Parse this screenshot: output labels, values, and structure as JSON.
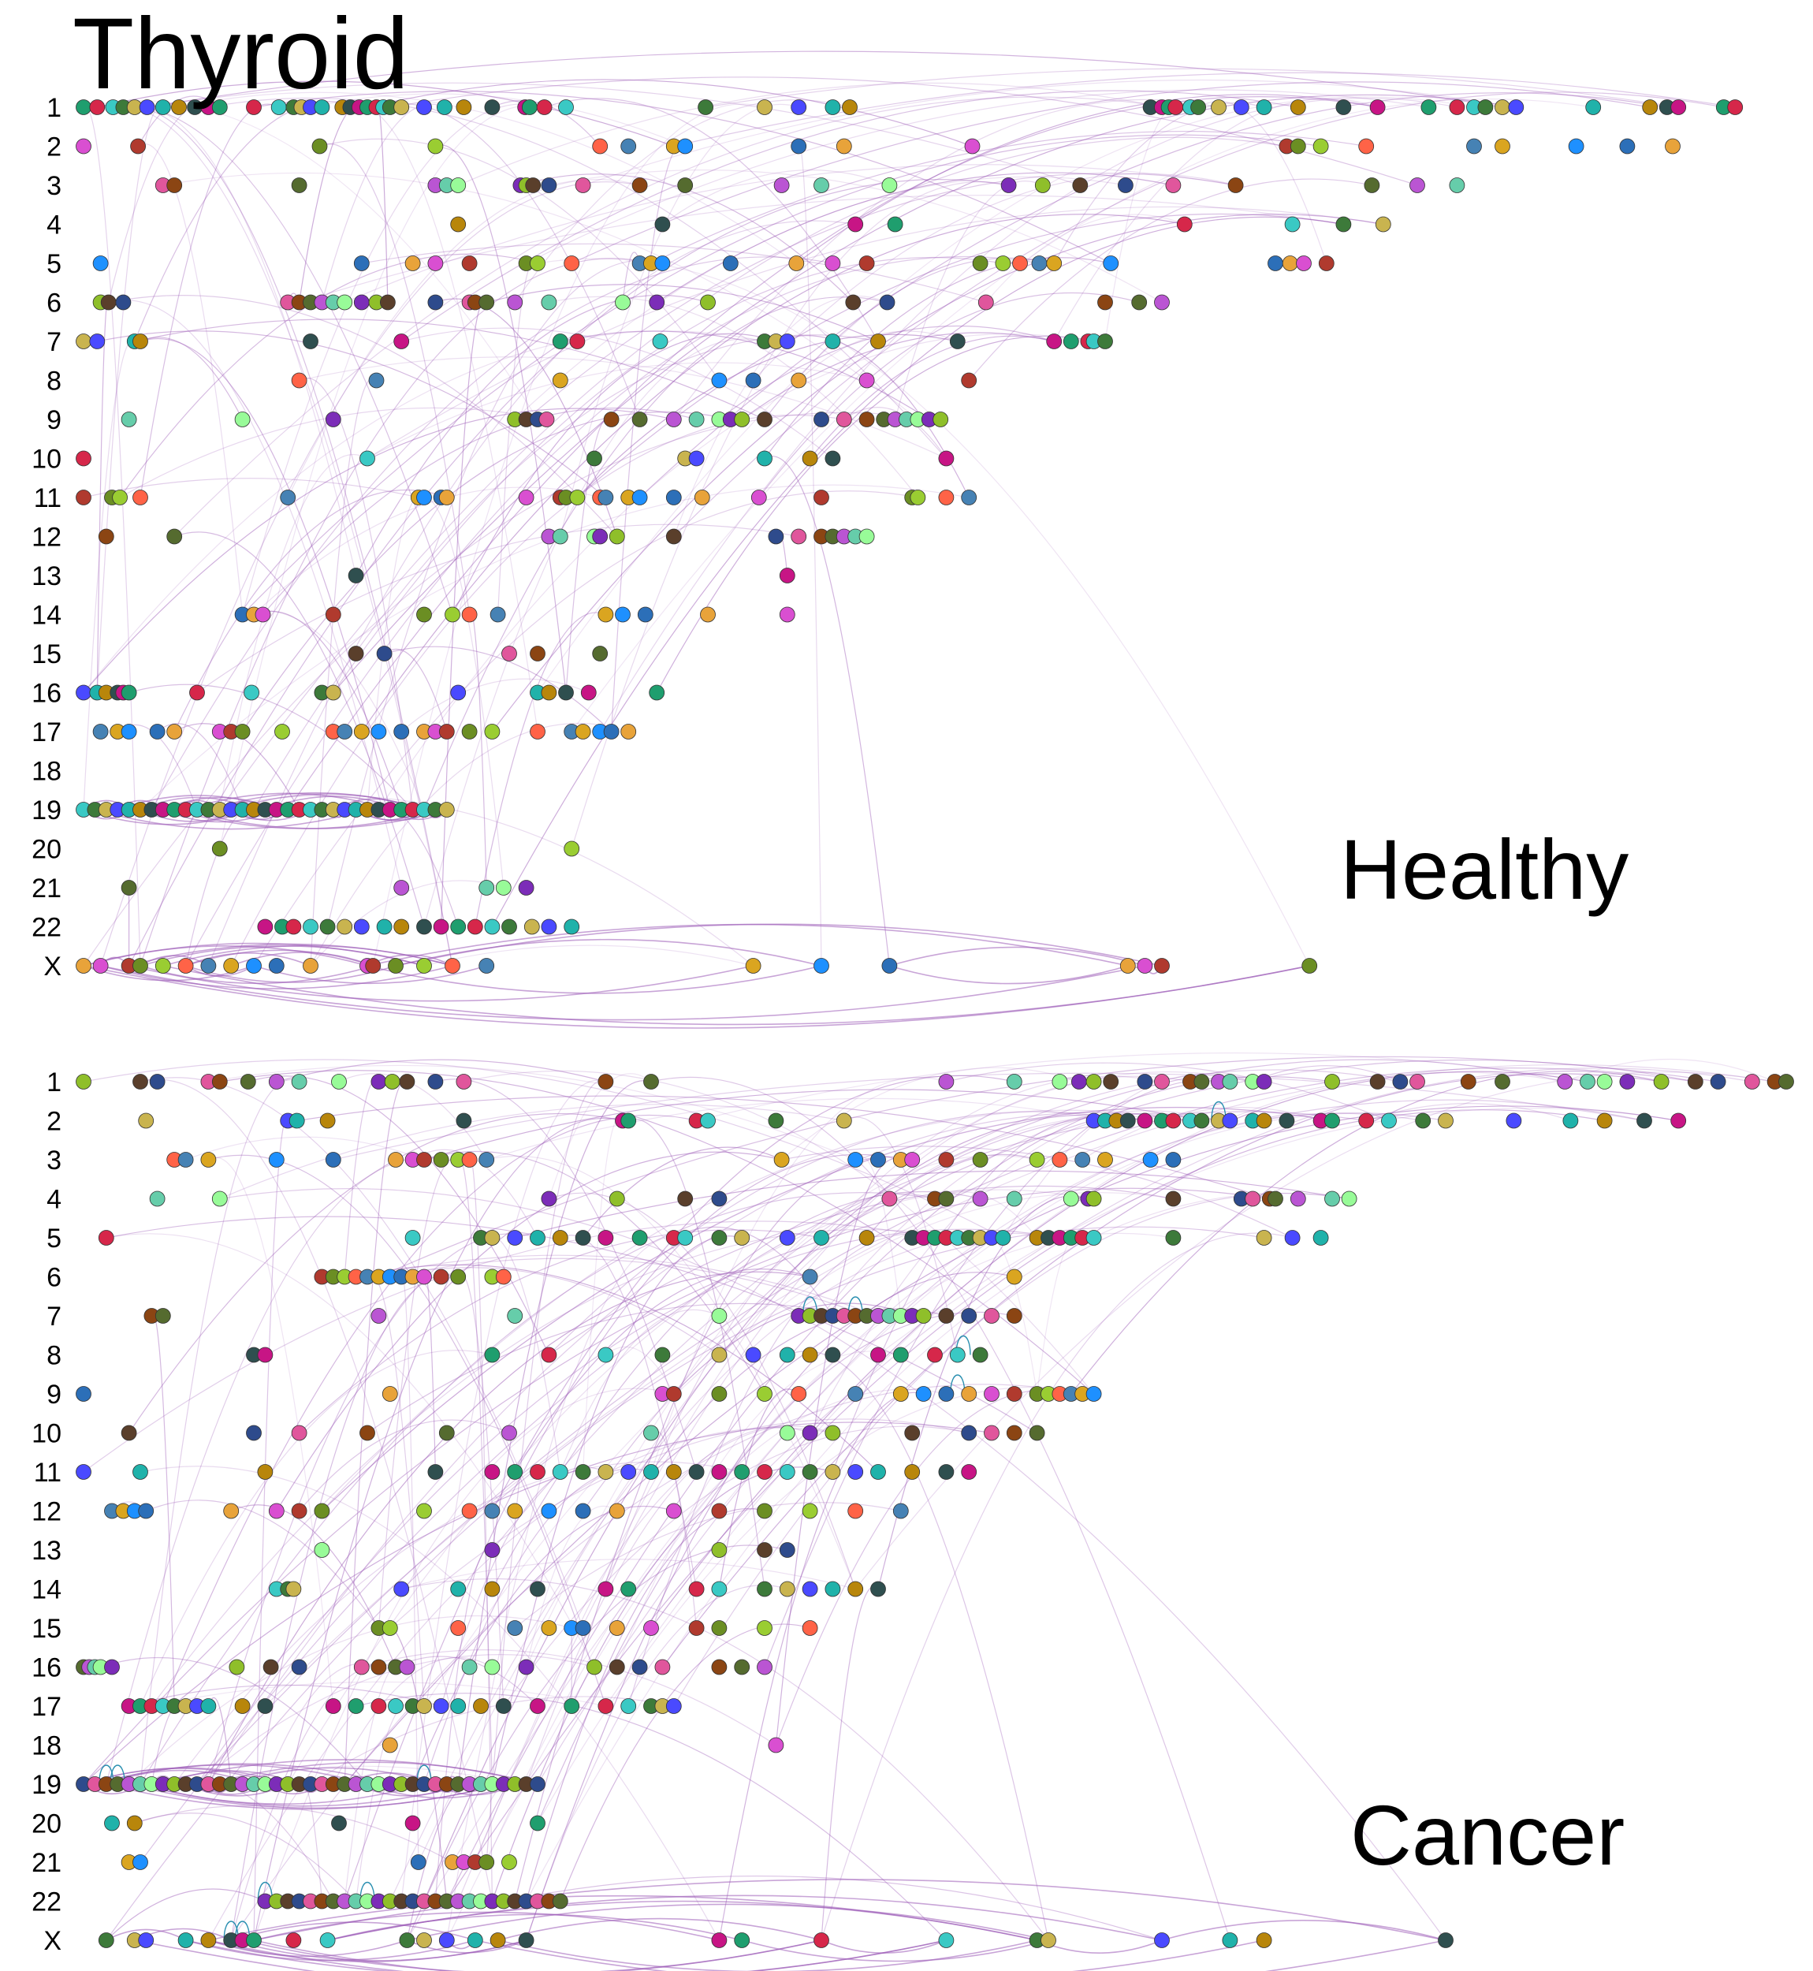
{
  "title": "Thyroid",
  "panels": [
    {
      "name": "Healthy",
      "chromosomes": [
        "1",
        "2",
        "3",
        "4",
        "5",
        "6",
        "7",
        "8",
        "9",
        "10",
        "11",
        "12",
        "13",
        "14",
        "15",
        "16",
        "17",
        "18",
        "19",
        "20",
        "21",
        "22",
        "X"
      ]
    },
    {
      "name": "Cancer",
      "chromosomes": [
        "1",
        "2",
        "3",
        "4",
        "5",
        "6",
        "7",
        "8",
        "9",
        "10",
        "11",
        "12",
        "13",
        "14",
        "15",
        "16",
        "17",
        "18",
        "19",
        "20",
        "21",
        "22",
        "X"
      ]
    }
  ],
  "colors": {
    "inter_link": "#9b59b6",
    "self_loop": "#2a8fb0",
    "marker_stroke": "#333333",
    "palette": [
      "#1f9e6e",
      "#2c6fb8",
      "#7c2db8",
      "#d6274a",
      "#e8a33a",
      "#8fbf2a",
      "#3ac9c4",
      "#d94fd1",
      "#5a3f2b",
      "#3d7a3a",
      "#b03a2e",
      "#2e4b8c",
      "#c9b44f",
      "#6b8e23",
      "#e0569c",
      "#4a4aff",
      "#9acd32",
      "#8b4513",
      "#20b2aa",
      "#ff6347",
      "#556b2f",
      "#b8860b",
      "#4682b4",
      "#ba55d3",
      "#2f4f4f",
      "#daa520",
      "#66cdaa",
      "#c71585",
      "#1e90ff",
      "#98fb98"
    ]
  },
  "chart_data": [
    {
      "type": "scatter",
      "panel": "Healthy",
      "description_scale": "genomic position index along each chromosome row (0 = left edge of row)",
      "rows": {
        "1": [
          0,
          12,
          26,
          35,
          45,
          56,
          70,
          84,
          98,
          110,
          120,
          150,
          172,
          185,
          192,
          200,
          210,
          228,
          235,
          243,
          250,
          258,
          264,
          270,
          280,
          300,
          318,
          335,
          360,
          389,
          393,
          406,
          425,
          548,
          600,
          630,
          660,
          675,
          940,
          950,
          956,
          962,
          975,
          982,
          1000,
          1020,
          1040,
          1070,
          1110,
          1140,
          1185,
          1210,
          1225,
          1235,
          1250,
          1262,
          1330,
          1380,
          1395,
          1405,
          1445,
          1455
        ],
        "2": [
          0,
          48,
          208,
          310,
          455,
          480,
          520,
          530,
          630,
          670,
          783,
          1060,
          1070,
          1090,
          1130,
          1225,
          1250,
          1315,
          1360,
          1400
        ],
        "3": [
          70,
          80,
          190,
          310,
          320,
          330,
          385,
          390,
          396,
          410,
          440,
          490,
          530,
          615,
          650,
          710,
          815,
          845,
          878,
          918,
          960,
          1015,
          1135,
          1175,
          1210
        ],
        "4": [
          330,
          510,
          680,
          715,
          970,
          1065,
          1110,
          1145
        ],
        "5": [
          15,
          245,
          290,
          310,
          340,
          390,
          400,
          430,
          490,
          500,
          510,
          570,
          628,
          660,
          690,
          790,
          810,
          825,
          842,
          855,
          905,
          1050,
          1063,
          1075,
          1095
        ],
        "6": [
          15,
          22,
          35,
          180,
          190,
          200,
          210,
          220,
          230,
          245,
          258,
          268,
          310,
          340,
          345,
          355,
          380,
          410,
          475,
          505,
          550,
          678,
          708,
          795,
          900,
          930,
          950
        ],
        "7": [
          0,
          12,
          45,
          50,
          200,
          280,
          420,
          435,
          508,
          600,
          610,
          620,
          660,
          700,
          770,
          855,
          870,
          885,
          890,
          900
        ],
        "8": [
          190,
          258,
          420,
          560,
          590,
          630,
          690,
          780
        ],
        "9": [
          40,
          140,
          220,
          380,
          390,
          400,
          408,
          465,
          490,
          520,
          540,
          560,
          570,
          580,
          600,
          650,
          670,
          690,
          705,
          715,
          725,
          735,
          745,
          755
        ],
        "10": [
          0,
          250,
          450,
          530,
          540,
          600,
          640,
          660,
          760
        ],
        "11": [
          0,
          25,
          32,
          50,
          180,
          295,
          300,
          315,
          320,
          390,
          420,
          425,
          435,
          455,
          460,
          480,
          490,
          520,
          545,
          595,
          650,
          730,
          735,
          760,
          780
        ],
        "12": [
          20,
          80,
          410,
          420,
          450,
          455,
          470,
          520,
          610,
          630,
          650,
          660,
          670,
          680,
          690
        ],
        "13": [
          240,
          620
        ],
        "14": [
          140,
          150,
          158,
          220,
          300,
          325,
          340,
          365,
          460,
          475,
          495,
          550,
          620
        ],
        "15": [
          240,
          265,
          375,
          400,
          455
        ],
        "16": [
          0,
          12,
          20,
          30,
          35,
          40,
          100,
          148,
          210,
          220,
          330,
          400,
          410,
          425,
          445,
          505
        ],
        "17": [
          15,
          30,
          40,
          65,
          80,
          120,
          130,
          140,
          175,
          220,
          230,
          245,
          260,
          280,
          300,
          310,
          320,
          340,
          360,
          400,
          430,
          440,
          455,
          465,
          480
        ],
        "18": [],
        "19": [
          0,
          10,
          20,
          30,
          40,
          50,
          60,
          70,
          80,
          90,
          100,
          110,
          120,
          130,
          140,
          150,
          160,
          170,
          180,
          190,
          200,
          210,
          220,
          230,
          240,
          250,
          260,
          270,
          280,
          290,
          300,
          310,
          320
        ],
        "20": [
          120,
          430
        ],
        "21": [
          40,
          280,
          355,
          370,
          390
        ],
        "22": [
          160,
          175,
          185,
          200,
          215,
          230,
          245,
          265,
          280,
          300,
          315,
          330,
          345,
          360,
          375,
          395,
          410,
          430
        ],
        "X": [
          0,
          15,
          40,
          50,
          70,
          90,
          110,
          130,
          150,
          170,
          200,
          250,
          255,
          275,
          300,
          325,
          355,
          590,
          650,
          710,
          920,
          935,
          950,
          1080
        ]
      }
    },
    {
      "type": "scatter",
      "panel": "Cancer",
      "description_scale": "genomic position index along each chromosome row (0 = left edge of row)",
      "rows": {
        "1": [
          0,
          50,
          65,
          110,
          120,
          145,
          170,
          190,
          225,
          260,
          272,
          285,
          310,
          335,
          460,
          500,
          760,
          820,
          860,
          877,
          890,
          905,
          935,
          950,
          975,
          985,
          1000,
          1010,
          1030,
          1040,
          1100,
          1140,
          1160,
          1175,
          1220,
          1250,
          1305,
          1325,
          1340,
          1360,
          1390,
          1420,
          1440,
          1470,
          1490,
          1500
        ],
        "2": [
          55,
          180,
          188,
          215,
          335,
          475,
          480,
          540,
          550,
          610,
          670,
          890,
          900,
          910,
          920,
          935,
          950,
          960,
          975,
          985,
          1000,
          1010,
          1030,
          1040,
          1060,
          1090,
          1100,
          1130,
          1150,
          1180,
          1200,
          1260,
          1310,
          1340,
          1375,
          1405
        ],
        "3": [
          80,
          90,
          110,
          170,
          220,
          275,
          290,
          300,
          315,
          330,
          340,
          355,
          615,
          680,
          700,
          720,
          730,
          760,
          790,
          840,
          860,
          880,
          900,
          940,
          960
        ],
        "4": [
          65,
          120,
          410,
          470,
          530,
          560,
          710,
          750,
          760,
          790,
          820,
          870,
          885,
          890,
          960,
          1020,
          1030,
          1045,
          1050,
          1070,
          1100,
          1115
        ],
        "5": [
          20,
          290,
          350,
          360,
          380,
          400,
          420,
          440,
          460,
          490,
          520,
          530,
          560,
          580,
          620,
          650,
          690,
          730,
          740,
          750,
          760,
          770,
          780,
          790,
          800,
          810,
          840,
          850,
          860,
          870,
          880,
          890,
          960,
          1040,
          1065,
          1090
        ],
        "6": [
          210,
          220,
          230,
          240,
          250,
          260,
          270,
          280,
          290,
          300,
          315,
          330,
          360,
          370,
          640,
          820
        ],
        "7": [
          60,
          70,
          260,
          380,
          560,
          630,
          640,
          650,
          660,
          670,
          680,
          690,
          700,
          710,
          720,
          730,
          740,
          760,
          780,
          800,
          820
        ],
        "8": [
          150,
          160,
          360,
          410,
          460,
          510,
          560,
          590,
          620,
          640,
          660,
          700,
          720,
          750,
          770,
          790
        ],
        "9": [
          0,
          270,
          510,
          520,
          560,
          600,
          630,
          680,
          720,
          740,
          760,
          780,
          800,
          820,
          840,
          850,
          860,
          870,
          880,
          890
        ],
        "10": [
          40,
          150,
          190,
          250,
          320,
          375,
          500,
          620,
          640,
          660,
          730,
          780,
          800,
          820,
          840
        ],
        "11": [
          0,
          50,
          160,
          310,
          360,
          380,
          400,
          420,
          440,
          460,
          480,
          500,
          520,
          540,
          560,
          580,
          600,
          620,
          640,
          660,
          680,
          700,
          730,
          760,
          780
        ],
        "12": [
          25,
          35,
          45,
          55,
          130,
          170,
          190,
          210,
          300,
          340,
          360,
          380,
          410,
          440,
          470,
          520,
          560,
          600,
          640,
          680,
          720
        ],
        "13": [
          210,
          360,
          560,
          600,
          620
        ],
        "14": [
          170,
          180,
          185,
          280,
          330,
          360,
          400,
          460,
          480,
          540,
          560,
          600,
          620,
          640,
          660,
          680,
          700
        ],
        "15": [
          260,
          270,
          330,
          380,
          410,
          430,
          440,
          470,
          500,
          540,
          560,
          600,
          640
        ],
        "16": [
          0,
          5,
          10,
          15,
          25,
          135,
          165,
          190,
          245,
          260,
          275,
          285,
          340,
          360,
          390,
          450,
          470,
          490,
          510,
          560,
          580,
          600
        ],
        "17": [
          40,
          50,
          60,
          70,
          80,
          90,
          100,
          110,
          140,
          160,
          220,
          240,
          260,
          275,
          290,
          300,
          315,
          330,
          350,
          370,
          400,
          430,
          460,
          480,
          500,
          510,
          520
        ],
        "18": [
          270,
          610
        ],
        "19": [
          0,
          10,
          20,
          30,
          40,
          50,
          60,
          70,
          80,
          90,
          100,
          110,
          120,
          130,
          140,
          150,
          160,
          170,
          180,
          190,
          200,
          210,
          220,
          230,
          240,
          250,
          260,
          270,
          280,
          290,
          300,
          310,
          320,
          330,
          340,
          350,
          360,
          370,
          380,
          390,
          400
        ],
        "20": [
          25,
          45,
          225,
          290,
          400
        ],
        "21": [
          40,
          50,
          295,
          325,
          335,
          345,
          355,
          375
        ],
        "22": [
          160,
          170,
          180,
          190,
          200,
          210,
          220,
          230,
          240,
          250,
          260,
          270,
          280,
          290,
          300,
          310,
          320,
          330,
          340,
          350,
          360,
          370,
          380,
          390,
          400,
          410,
          420
        ],
        "X": [
          20,
          45,
          55,
          90,
          110,
          130,
          140,
          150,
          185,
          215,
          285,
          300,
          320,
          345,
          365,
          390,
          560,
          580,
          650,
          760,
          840,
          850,
          950,
          1010,
          1040,
          1200
        ]
      }
    }
  ]
}
